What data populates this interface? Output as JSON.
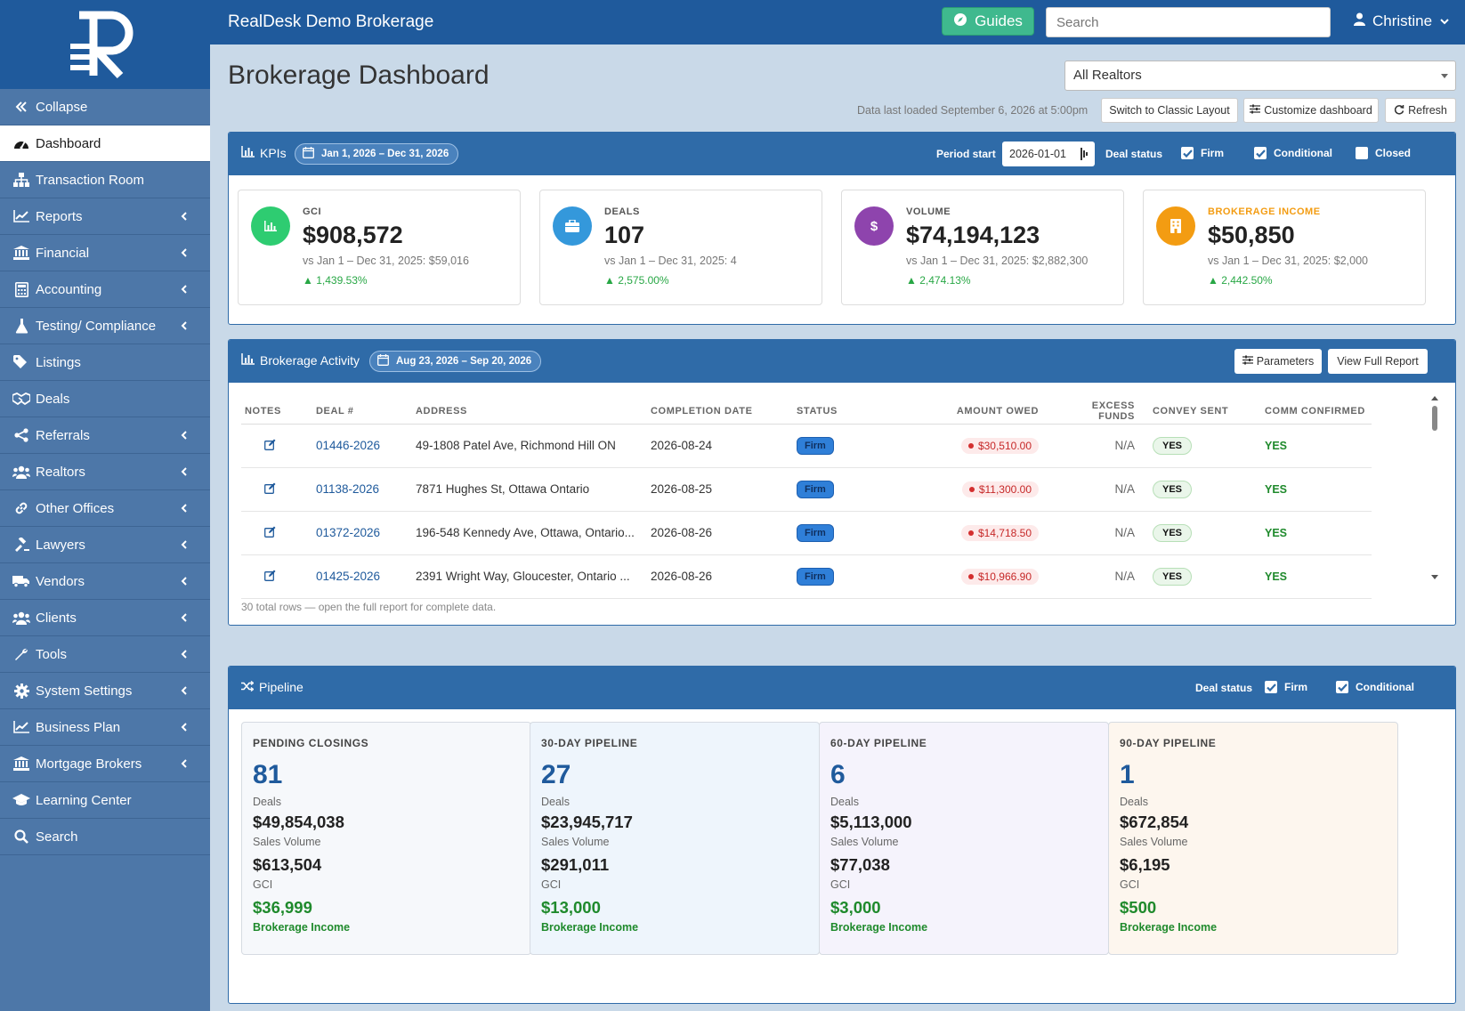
{
  "app": {
    "title": "RealDesk Demo Brokerage"
  },
  "topbar": {
    "guides_label": "Guides",
    "search_placeholder": "Search",
    "user_name": "Christine"
  },
  "sidebar": {
    "items": [
      {
        "label": "Collapse",
        "icon": "double-chevron-left-icon",
        "has_chevron": false
      },
      {
        "label": "Dashboard",
        "icon": "dashboard-icon",
        "has_chevron": false,
        "active": true
      },
      {
        "label": "Transaction Room",
        "icon": "sitemap-icon",
        "has_chevron": false
      },
      {
        "label": "Reports",
        "icon": "line-chart-icon",
        "has_chevron": true
      },
      {
        "label": "Financial",
        "icon": "bank-icon",
        "has_chevron": true
      },
      {
        "label": "Accounting",
        "icon": "calculator-icon",
        "has_chevron": true
      },
      {
        "label": "Testing/ Compliance",
        "icon": "flask-icon",
        "has_chevron": true
      },
      {
        "label": "Listings",
        "icon": "tags-icon",
        "has_chevron": false
      },
      {
        "label": "Deals",
        "icon": "handshake-icon",
        "has_chevron": false
      },
      {
        "label": "Referrals",
        "icon": "share-icon",
        "has_chevron": true
      },
      {
        "label": "Realtors",
        "icon": "users-icon",
        "has_chevron": true
      },
      {
        "label": "Other Offices",
        "icon": "link-icon",
        "has_chevron": true
      },
      {
        "label": "Lawyers",
        "icon": "gavel-icon",
        "has_chevron": true
      },
      {
        "label": "Vendors",
        "icon": "truck-icon",
        "has_chevron": true
      },
      {
        "label": "Clients",
        "icon": "users-icon",
        "has_chevron": true
      },
      {
        "label": "Tools",
        "icon": "wrench-icon",
        "has_chevron": true
      },
      {
        "label": "System Settings",
        "icon": "cog-icon",
        "has_chevron": true
      },
      {
        "label": "Business Plan",
        "icon": "line-chart-icon",
        "has_chevron": true
      },
      {
        "label": "Mortgage Brokers",
        "icon": "bank-icon",
        "has_chevron": true
      },
      {
        "label": "Learning Center",
        "icon": "graduation-cap-icon",
        "has_chevron": false
      },
      {
        "label": "Search",
        "icon": "search-icon",
        "has_chevron": false
      }
    ]
  },
  "page": {
    "title": "Brokerage Dashboard",
    "realtor_select": "All Realtors",
    "data_loaded": "Data last loaded September 6, 2026 at 5:00pm",
    "buttons": {
      "classic": "Switch to Classic Layout",
      "customize": "Customize dashboard",
      "refresh": "Refresh"
    }
  },
  "kpis": {
    "title": "KPIs",
    "date_range": "Jan 1, 2026 – Dec 31, 2026",
    "period_start_label": "Period start",
    "period_start_value": "2026-01-01",
    "deal_status_label": "Deal status",
    "filters": [
      {
        "label": "Firm",
        "checked": true
      },
      {
        "label": "Conditional",
        "checked": true
      },
      {
        "label": "Closed",
        "checked": false
      }
    ],
    "cards": [
      {
        "label": "GCI",
        "value": "$908,572",
        "vs": "vs Jan 1 – Dec 31, 2025: $59,016",
        "change": "▲ 1,439.53%",
        "color": "#2ecc71",
        "icon": "bar-chart-icon"
      },
      {
        "label": "DEALS",
        "value": "107",
        "vs": "vs Jan 1 – Dec 31, 2025: 4",
        "change": "▲ 2,575.00%",
        "color": "#3498db",
        "icon": "briefcase-icon"
      },
      {
        "label": "VOLUME",
        "value": "$74,194,123",
        "vs": "vs Jan 1 – Dec 31, 2025: $2,882,300",
        "change": "▲ 2,474.13%",
        "color": "#8e44ad",
        "icon": "dollar-icon"
      },
      {
        "label": "BROKERAGE INCOME",
        "value": "$50,850",
        "vs": "vs Jan 1 – Dec 31, 2025: $2,000",
        "change": "▲ 2,442.50%",
        "color": "#f39c12",
        "icon": "building-icon"
      }
    ]
  },
  "activity": {
    "title": "Brokerage Activity",
    "date_range": "Aug 23, 2026 – Sep 20, 2026",
    "parameters_label": "Parameters",
    "full_report_label": "View Full Report",
    "columns": [
      "NOTES",
      "DEAL #",
      "ADDRESS",
      "COMPLETION DATE",
      "STATUS",
      "AMOUNT OWED",
      "EXCESS FUNDS",
      "CONVEY SENT",
      "COMM CONFIRMED"
    ],
    "rows": [
      {
        "deal": "01446-2026",
        "address": "49-1808 Patel Ave, Richmond Hill ON",
        "date": "2026-08-24",
        "status": "Firm",
        "owed": "$30,510.00",
        "excess": "N/A",
        "convey": "YES",
        "comm": "YES"
      },
      {
        "deal": "01138-2026",
        "address": "7871 Hughes St, Ottawa Ontario",
        "date": "2026-08-25",
        "status": "Firm",
        "owed": "$11,300.00",
        "excess": "N/A",
        "convey": "YES",
        "comm": "YES"
      },
      {
        "deal": "01372-2026",
        "address": "196-548 Kennedy Ave, Ottawa, Ontario...",
        "date": "2026-08-26",
        "status": "Firm",
        "owed": "$14,718.50",
        "excess": "N/A",
        "convey": "YES",
        "comm": "YES"
      },
      {
        "deal": "01425-2026",
        "address": "2391 Wright Way, Gloucester, Ontario ...",
        "date": "2026-08-26",
        "status": "Firm",
        "owed": "$10,966.90",
        "excess": "N/A",
        "convey": "YES",
        "comm": "YES"
      }
    ],
    "footer": "30 total rows — open the full report for complete data."
  },
  "pipeline": {
    "title": "Pipeline",
    "deal_status_label": "Deal status",
    "filters": [
      {
        "label": "Firm",
        "checked": true
      },
      {
        "label": "Conditional",
        "checked": true
      }
    ],
    "cards": [
      {
        "title": "PENDING CLOSINGS",
        "count": "81",
        "count_label": "Deals",
        "volume": "$49,854,038",
        "volume_label": "Sales Volume",
        "gci": "$613,504",
        "gci_label": "GCI",
        "income": "$36,999",
        "income_label": "Brokerage Income",
        "bg": "#f6f8fb"
      },
      {
        "title": "30-DAY PIPELINE",
        "count": "27",
        "count_label": "Deals",
        "volume": "$23,945,717",
        "volume_label": "Sales Volume",
        "gci": "$291,011",
        "gci_label": "GCI",
        "income": "$13,000",
        "income_label": "Brokerage Income",
        "bg": "#eef5fc"
      },
      {
        "title": "60-DAY PIPELINE",
        "count": "6",
        "count_label": "Deals",
        "volume": "$5,113,000",
        "volume_label": "Sales Volume",
        "gci": "$77,038",
        "gci_label": "GCI",
        "income": "$3,000",
        "income_label": "Brokerage Income",
        "bg": "#f5f3fc"
      },
      {
        "title": "90-DAY PIPELINE",
        "count": "1",
        "count_label": "Deals",
        "volume": "$672,854",
        "volume_label": "Sales Volume",
        "gci": "$6,195",
        "gci_label": "GCI",
        "income": "$500",
        "income_label": "Brokerage Income",
        "bg": "#fdf6ee"
      }
    ]
  }
}
